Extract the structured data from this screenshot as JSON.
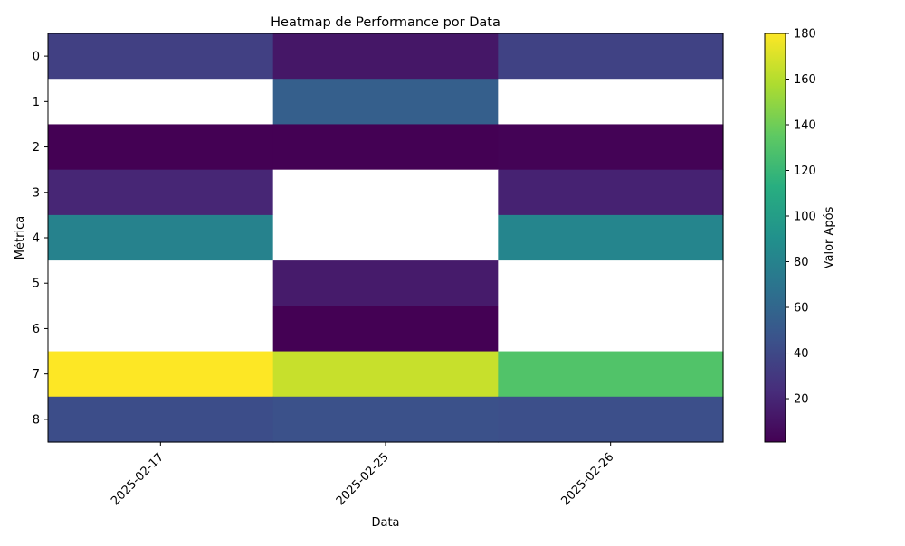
{
  "chart_data": {
    "type": "heatmap",
    "title": "Heatmap de Performance por Data",
    "xlabel": "Data",
    "ylabel": "Métrica",
    "x_categories": [
      "2025-02-17",
      "2025-02-25",
      "2025-02-26"
    ],
    "y_categories": [
      "0",
      "1",
      "2",
      "3",
      "4",
      "5",
      "6",
      "7",
      "8"
    ],
    "values": [
      [
        35,
        12,
        36
      ],
      [
        null,
        55,
        null
      ],
      [
        1,
        0.5,
        2
      ],
      [
        20,
        null,
        18
      ],
      [
        80,
        null,
        82
      ],
      [
        null,
        14,
        null
      ],
      [
        null,
        1,
        null
      ],
      [
        180,
        165,
        130
      ],
      [
        43,
        45,
        44
      ]
    ],
    "missing_color": "#ffffff",
    "colormap": "viridis",
    "colorbar": {
      "label": "Valor Após",
      "range": [
        1,
        180
      ],
      "ticks": [
        20,
        40,
        60,
        80,
        100,
        120,
        140,
        160,
        180
      ]
    },
    "grid": false
  }
}
